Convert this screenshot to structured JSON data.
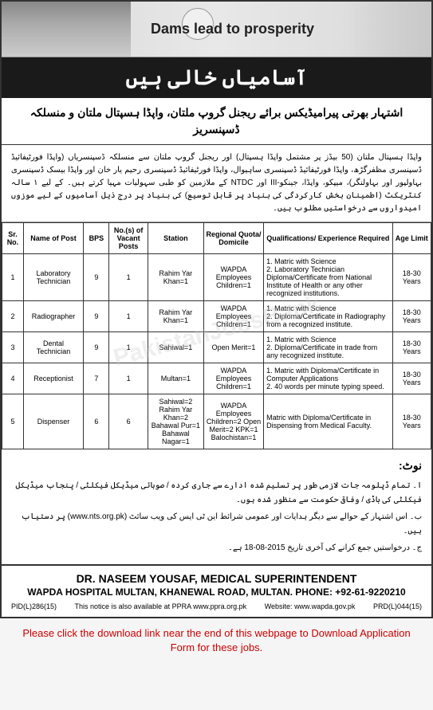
{
  "header": {
    "banner_text": "Dams lead to prosperity",
    "title_urdu": "آسامیاں خالی ہیں",
    "sub_header_urdu": "اشتہار بھرتی پیرامیڈیکس برائے ریجنل گروپ ملتان، واپڈا ہسپتال ملتان و منسلکہ ڈسپنسریز"
  },
  "intro": {
    "text_urdu": "واپڈا ہسپتال ملتان (50 بیڈز پر مشتمل واپڈا ہسپتال) اور ریجنل گروپ ملتان سے منسلکہ ڈسپنسریاں (واپڈا فورٹیفائیڈ ڈسپنسری مظفرگڑھ، واپڈا فورٹیفائیڈ ڈسپنسری ساہیوال، واپڈا فورٹیفائیڈ ڈسپنسری رحیم یار خان اور واپڈا بیسک ڈسپنسری بہاولپور اور بہاولنگر)، میپکو، واپڈا، جینکو-III اور NTDC کے ملازمین کو طبی سہولیات مہیا کرتے ہیں۔ کے لیے ۱ سالہ کنٹریکٹ (اطمینان بخش کارکردگی کی بنیاد پر قابل توسیع) کی بنیاد پر درج ذیل آسامیوں کے لیے موزوں امیدواروں سے درخواستیں مطلوب ہیں۔"
  },
  "table": {
    "headers": {
      "sr": "Sr. No.",
      "post": "Name of Post",
      "bps": "BPS",
      "vacant": "No.(s) of Vacant Posts",
      "station": "Station",
      "quota": "Regional Quota/ Domicile",
      "qualifications": "Qualifications/ Experience Required",
      "age": "Age Limit"
    },
    "rows": [
      {
        "sr": "1",
        "post": "Laboratory Technician",
        "bps": "9",
        "vacant": "1",
        "station": "Rahim Yar Khan=1",
        "quota": "WAPDA Employees Children=1",
        "qualifications": "1. Matric with Science\n2. Laboratory Technician Diploma/Certificate from National Institute of Health or any other recognized institutions.",
        "age": "18-30 Years"
      },
      {
        "sr": "2",
        "post": "Radiographer",
        "bps": "9",
        "vacant": "1",
        "station": "Rahim Yar Khan=1",
        "quota": "WAPDA Employees Children=1",
        "qualifications": "1. Matric with Science\n2. Diploma/Certificate in Radiography from a recognized institute.",
        "age": "18-30 Years"
      },
      {
        "sr": "3",
        "post": "Dental Technician",
        "bps": "9",
        "vacant": "1",
        "station": "Sahiwal=1",
        "quota": "Open Merit=1",
        "qualifications": "1. Matric with Science\n2. Diploma/Certificate in trade from any recognized institute.",
        "age": "18-30 Years"
      },
      {
        "sr": "4",
        "post": "Receptionist",
        "bps": "7",
        "vacant": "1",
        "station": "Multan=1",
        "quota": "WAPDA Employees Children=1",
        "qualifications": "1. Matric with Diploma/Certificate in Computer Applications\n2. 40 words per minute typing speed.",
        "age": "18-30 Years"
      },
      {
        "sr": "5",
        "post": "Dispenser",
        "bps": "6",
        "vacant": "6",
        "station": "Sahiwal=2 Rahim Yar Khan=2 Bahawal Pur=1 Bahawal Nagar=1",
        "quota": "WAPDA Employees Children=2 Open Merit=2 KPK=1 Balochistan=1",
        "qualifications": "Matric with Diploma/Certificate in Dispensing from Medical Faculty.",
        "age": "18-30 Years"
      }
    ]
  },
  "notes": {
    "title": "نوٹ:",
    "items": [
      "ا۔ تمام ڈپلومہ جات لازمی طور پر تسلیم شدہ ادارے سے جاری کردہ / صوبائی میڈیکل فیکلٹی / پنجاب میڈیکل فیکلٹی کی باڈی / وفاقی حکومت سے منظور شدہ ہوں۔",
      "ب۔ اس اشتہار کے حوالے سے دیگر ہدایات اور عمومی شرائط این ٹی ایس کی ویب سائٹ (www.nts.org.pk) پر دستیاب ہیں۔",
      "ج۔ درخواستیں جمع کرانے کی آخری تاریخ 2015-08-18 ہے۔"
    ]
  },
  "footer": {
    "name": "DR. NASEEM YOUSAF, MEDICAL SUPERINTENDENT",
    "address": "WAPDA HOSPITAL MULTAN, KHANEWAL ROAD, MULTAN. PHONE: +92-61-9220210",
    "pid_left": "PID(L)286(15)",
    "notice_text": "This notice is also available at PPRA",
    "ppra_url": "www.ppra.org.pk",
    "website_label": "Website:",
    "website_url": "www.wapda.gov.pk",
    "prd_right": "PRD(L)044(15)"
  },
  "download_notice": "Please click the download link near the end of this webpage to Download Application Form for these jobs.",
  "watermark": "PakistanJobsBank",
  "colors": {
    "title_bg": "#1a1a1a",
    "border": "#333333",
    "notice_red": "#cc0000"
  },
  "column_widths": {
    "sr": "5%",
    "post": "14%",
    "bps": "6%",
    "vacant": "9%",
    "station": "13%",
    "quota": "14%",
    "qualifications": "30%",
    "age": "9%"
  }
}
